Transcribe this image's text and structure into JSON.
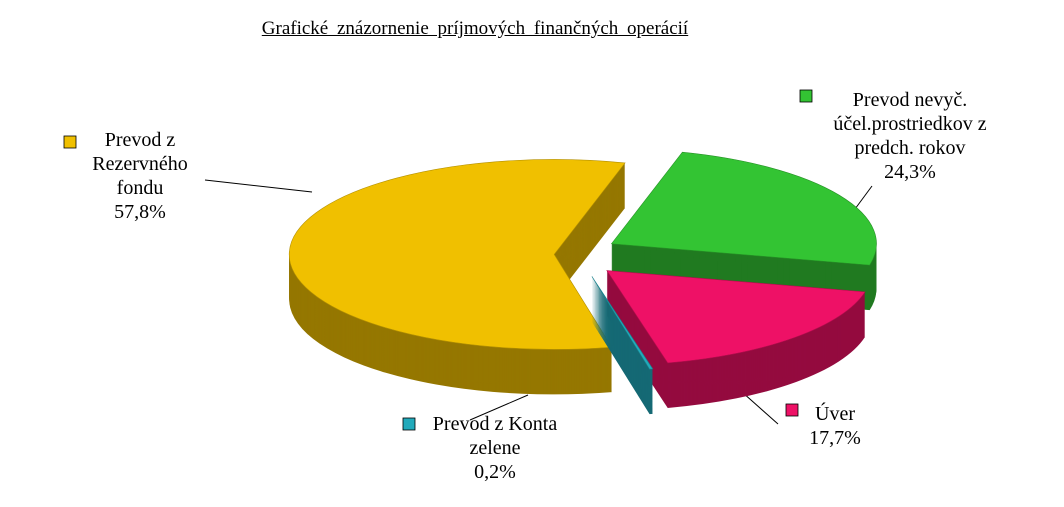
{
  "chart_data": {
    "type": "pie",
    "title": "Grafické znázornenie príjmových finančných operácií",
    "categories": [
      "Prevod nevyč. účel.prostriedkov z predch. rokov",
      "Úver",
      "Prevod z Konta zelene",
      "Prevod z Rezervného fondu"
    ],
    "values": [
      24.3,
      17.7,
      0.2,
      57.8
    ],
    "value_labels": [
      "24,3%",
      "17,7%",
      "0,2%",
      "57,8%"
    ],
    "colors": [
      "#33c433",
      "#ee1166",
      "#22aabb",
      "#f0c000"
    ]
  }
}
